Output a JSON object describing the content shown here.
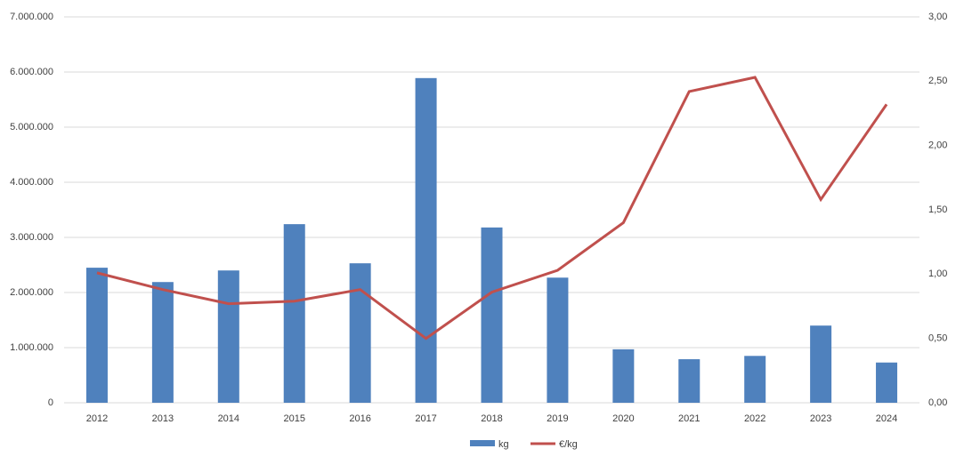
{
  "chart_data": {
    "type": "bar-line",
    "categories": [
      "2012",
      "2013",
      "2014",
      "2015",
      "2016",
      "2017",
      "2018",
      "2019",
      "2020",
      "2021",
      "2022",
      "2023",
      "2024"
    ],
    "series": [
      {
        "name": "kg",
        "type": "bar",
        "color": "#4f81bd",
        "values": [
          2450000,
          2190000,
          2400000,
          3240000,
          2530000,
          5890000,
          3180000,
          2270000,
          970000,
          790000,
          850000,
          1400000,
          730000
        ]
      },
      {
        "name": "€/kg",
        "type": "line",
        "axis": "y2",
        "color": "#c0504d",
        "values": [
          1.01,
          0.88,
          0.77,
          0.79,
          0.88,
          0.5,
          0.86,
          1.03,
          1.4,
          2.42,
          2.53,
          1.58,
          2.32
        ]
      }
    ],
    "ylim": [
      0,
      7000000
    ],
    "yticks": [
      0,
      {
        "value": 1000000,
        "label": "1.000.000"
      },
      {
        "value": 2000000,
        "label": "2.000.000"
      },
      {
        "value": 3000000,
        "label": "3.000.000"
      },
      {
        "value": 4000000,
        "label": "4.000.000"
      },
      {
        "value": 5000000,
        "label": "5.000.000"
      },
      {
        "value": 6000000,
        "label": "6.000.000"
      },
      {
        "value": 7000000,
        "label": "7.000.000"
      }
    ],
    "y2lim": [
      0,
      3
    ],
    "y2ticks": [
      {
        "value": 0,
        "label": "0,00"
      },
      {
        "value": 0.5,
        "label": "0,50"
      },
      {
        "value": 1,
        "label": "1,00"
      },
      {
        "value": 1.5,
        "label": "1,50"
      },
      {
        "value": 2,
        "label": "2,00"
      },
      {
        "value": 2.5,
        "label": "2,50"
      },
      {
        "value": 3,
        "label": "3,00"
      }
    ],
    "grid": true,
    "legend": "bottom"
  }
}
